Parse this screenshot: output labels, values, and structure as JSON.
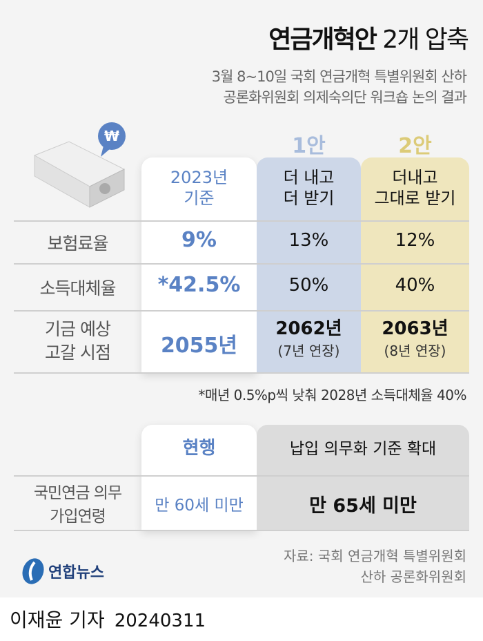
{
  "title": {
    "bold": "연금개혁안",
    "rest": " 2개 압축"
  },
  "subtitle": [
    "3월 8~10일 국회 연금개혁 특별위원회 산하",
    "공론화위원회 의제숙의단 워크숍 논의 결과"
  ],
  "icon": {
    "currency": "₩",
    "name": "money-stack-icon"
  },
  "colors": {
    "current_text": "#5a82c4",
    "plan1_bg": "#cdd7e8",
    "plan2_bg": "#efe6bd",
    "plan1_label": "#a8bcdc",
    "plan2_label": "#dccb78",
    "expand_bg": "#dcdcdc"
  },
  "table1": {
    "plan_labels": [
      "1안",
      "2안"
    ],
    "headers": [
      [
        "2023년",
        "기준"
      ],
      [
        "더 내고",
        "더 받기"
      ],
      [
        "더내고",
        "그대로 받기"
      ]
    ],
    "rows": [
      {
        "label": [
          "보험료율"
        ],
        "values": [
          "9%",
          "13%",
          "12%"
        ]
      },
      {
        "label": [
          "소득대체율"
        ],
        "values": [
          "*42.5%",
          "50%",
          "40%"
        ]
      },
      {
        "label": [
          "기금 예상",
          "고갈 시점"
        ],
        "values": [
          "2055년",
          "2062년",
          "2063년"
        ],
        "notes": [
          "",
          "(7년 연장)",
          "(8년 연장)"
        ]
      }
    ],
    "footnote": "*매년 0.5%p씩 낮춰 2028년 소득대체율 40%"
  },
  "table2": {
    "headers": [
      "현행",
      "납입 의무화 기준 확대"
    ],
    "row": {
      "label": [
        "국민연금 의무",
        "가입연령"
      ],
      "values": [
        "만 60세 미만",
        "만 65세 미만"
      ]
    }
  },
  "source": [
    "자료: 국회 연금개혁 특별위원회",
    "산하 공론화위원회"
  ],
  "logo": "연합뉴스",
  "byline": {
    "reporter": "이재윤 기자",
    "date": "20240311"
  }
}
